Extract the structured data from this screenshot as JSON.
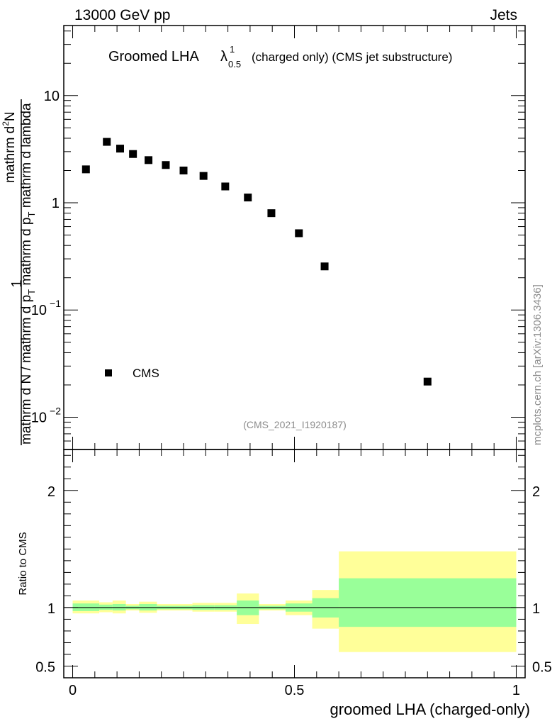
{
  "header": {
    "energy_label": "13000 GeV pp",
    "category_label": "Jets"
  },
  "title": {
    "main": "Groomed LHA",
    "symbol": "λ",
    "sup": "1",
    "sub": "0.5",
    "suffix": "(charged only) (CMS jet substructure)"
  },
  "y_axis": {
    "numerator_line1": "1",
    "numerator_frac_top": "mathrm d",
    "numerator_frac_top_sup": "2",
    "numerator_frac_top_end": "N",
    "denominator": "mathrm d N / mathrm d p",
    "denominator_sub": "T",
    "denominator_mid": " mathrm d p",
    "denominator_sub2": "T",
    "denominator_end": " mathrm d lambda",
    "ticks": [
      {
        "value": 10,
        "label": "10"
      },
      {
        "value": 1,
        "label": "1"
      },
      {
        "value": 0.1,
        "label_base": "10",
        "label_exp": "−1"
      },
      {
        "value": 0.01,
        "label_base": "10",
        "label_exp": "−2"
      }
    ],
    "range": [
      0.005,
      45
    ],
    "scale": "log"
  },
  "legend": {
    "entry": "CMS"
  },
  "analysis_id": "(CMS_2021_I1920187)",
  "side_label": "mcplots.cern.ch [arXiv:1306.3436]",
  "ratio": {
    "ylabel": "Ratio to CMS",
    "ticks": [
      {
        "value": 2,
        "label": "2"
      },
      {
        "value": 1,
        "label": "1"
      },
      {
        "value": 0.5,
        "label": "0.5"
      }
    ],
    "range": [
      0.4,
      2.35
    ]
  },
  "x_axis": {
    "label": "groomed LHA (charged-only)",
    "ticks": [
      {
        "value": 0,
        "label": "0"
      },
      {
        "value": 0.5,
        "label": "0.5"
      },
      {
        "value": 1,
        "label": "1"
      }
    ],
    "range": [
      -0.02,
      1.02
    ]
  },
  "colors": {
    "stat_band": "#99ff99",
    "total_band": "#ffff99",
    "marker": "#000000"
  },
  "chart_data": {
    "type": "scatter",
    "title": "Groomed LHA λ^1_0.5 (charged only) (CMS jet substructure)",
    "xlabel": "groomed LHA (charged-only)",
    "ylabel": "1/(dN/dpT) d2N/(dpT dλ)",
    "xlim": [
      -0.02,
      1.02
    ],
    "ylim": [
      0.005,
      45
    ],
    "series": [
      {
        "name": "CMS",
        "points": [
          {
            "x": 0.03,
            "y": 2.05
          },
          {
            "x": 0.077,
            "y": 3.7
          },
          {
            "x": 0.107,
            "y": 3.2
          },
          {
            "x": 0.136,
            "y": 2.85
          },
          {
            "x": 0.171,
            "y": 2.5
          },
          {
            "x": 0.21,
            "y": 2.25
          },
          {
            "x": 0.25,
            "y": 2.0
          },
          {
            "x": 0.295,
            "y": 1.78
          },
          {
            "x": 0.344,
            "y": 1.42
          },
          {
            "x": 0.395,
            "y": 1.12
          },
          {
            "x": 0.448,
            "y": 0.8
          },
          {
            "x": 0.51,
            "y": 0.52
          },
          {
            "x": 0.568,
            "y": 0.255
          },
          {
            "x": 0.8,
            "y": 0.0215
          }
        ]
      }
    ],
    "ratio_bins": [
      {
        "x0": 0.0,
        "x1": 0.06,
        "stat": [
          0.97,
          1.035
        ],
        "total": [
          0.95,
          1.06
        ]
      },
      {
        "x0": 0.06,
        "x1": 0.09,
        "stat": [
          0.98,
          1.025
        ],
        "total": [
          0.96,
          1.045
        ]
      },
      {
        "x0": 0.09,
        "x1": 0.12,
        "stat": [
          0.975,
          1.03
        ],
        "total": [
          0.95,
          1.06
        ]
      },
      {
        "x0": 0.12,
        "x1": 0.15,
        "stat": [
          0.985,
          1.015
        ],
        "total": [
          0.975,
          1.03
        ]
      },
      {
        "x0": 0.15,
        "x1": 0.19,
        "stat": [
          0.975,
          1.03
        ],
        "total": [
          0.955,
          1.05
        ]
      },
      {
        "x0": 0.19,
        "x1": 0.23,
        "stat": [
          0.985,
          1.015
        ],
        "total": [
          0.975,
          1.03
        ]
      },
      {
        "x0": 0.23,
        "x1": 0.27,
        "stat": [
          0.985,
          1.015
        ],
        "total": [
          0.975,
          1.03
        ]
      },
      {
        "x0": 0.27,
        "x1": 0.32,
        "stat": [
          0.98,
          1.02
        ],
        "total": [
          0.965,
          1.04
        ]
      },
      {
        "x0": 0.32,
        "x1": 0.37,
        "stat": [
          0.98,
          1.02
        ],
        "total": [
          0.965,
          1.04
        ]
      },
      {
        "x0": 0.37,
        "x1": 0.42,
        "stat": [
          0.935,
          1.06
        ],
        "total": [
          0.86,
          1.12
        ]
      },
      {
        "x0": 0.42,
        "x1": 0.48,
        "stat": [
          0.985,
          1.015
        ],
        "total": [
          0.975,
          1.03
        ]
      },
      {
        "x0": 0.48,
        "x1": 0.54,
        "stat": [
          0.965,
          1.035
        ],
        "total": [
          0.935,
          1.06
        ]
      },
      {
        "x0": 0.54,
        "x1": 0.6,
        "stat": [
          0.915,
          1.08
        ],
        "total": [
          0.82,
          1.15
        ]
      },
      {
        "x0": 0.6,
        "x1": 1.0,
        "stat": [
          0.835,
          1.25
        ],
        "total": [
          0.62,
          1.48
        ]
      }
    ]
  }
}
